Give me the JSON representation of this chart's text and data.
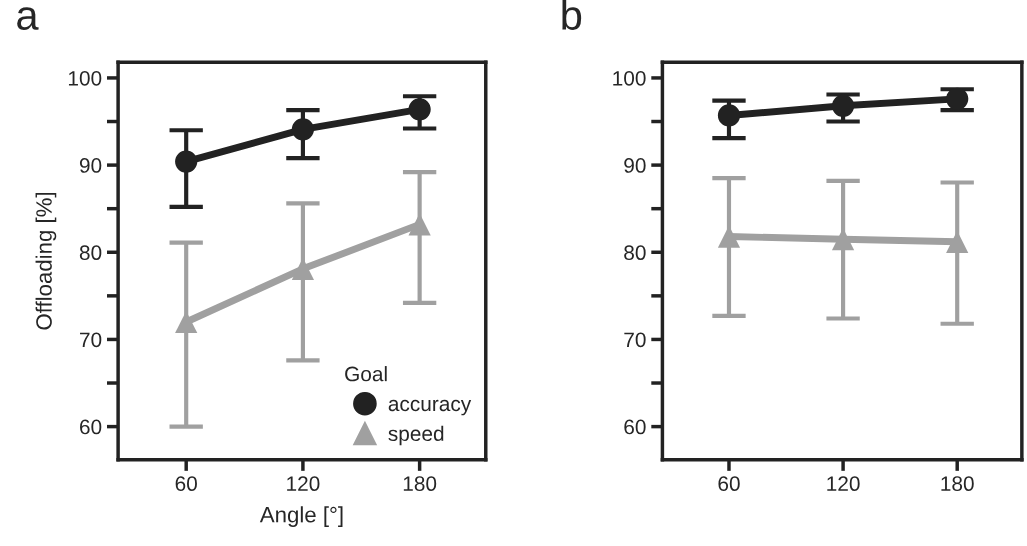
{
  "chart_data": [
    {
      "type": "line",
      "title": "a",
      "xlabel": "Angle [°]",
      "ylabel": "Offloading [%]",
      "legend_title": "Goal",
      "legend": "bottom right",
      "x": [
        60,
        120,
        180
      ],
      "xlim": [
        25,
        214
      ],
      "xticks": [
        60,
        120,
        180
      ],
      "ylim": [
        56.2,
        101.8
      ],
      "yticks": [
        60,
        {
          "value": 65,
          "label": null
        },
        70,
        {
          "value": 75,
          "label": null
        },
        80,
        {
          "value": 85,
          "label": null
        },
        90,
        {
          "value": 95,
          "label": null
        },
        100
      ],
      "series": [
        {
          "name": "accuracy",
          "color": "#222222",
          "marker": "circle",
          "values": [
            90.4,
            94.1,
            96.4
          ],
          "errors": [
            [
              85.2,
              94.0
            ],
            [
              90.8,
              96.3
            ],
            [
              94.2,
              97.9
            ]
          ]
        },
        {
          "name": "speed",
          "color": "#a0a0a0",
          "marker": "triangle",
          "values": [
            72.0,
            78.1,
            83.2
          ],
          "errors": [
            [
              60.0,
              81.1
            ],
            [
              67.6,
              85.6
            ],
            [
              74.2,
              89.2
            ]
          ]
        }
      ]
    },
    {
      "type": "line",
      "title": "b",
      "x": [
        60,
        120,
        180
      ],
      "xlim": [
        25,
        214
      ],
      "xticks": [
        60,
        120,
        180
      ],
      "ylim": [
        56.2,
        101.8
      ],
      "yticks": [
        60,
        {
          "value": 65,
          "label": null
        },
        70,
        {
          "value": 75,
          "label": null
        },
        80,
        {
          "value": 85,
          "label": null
        },
        90,
        {
          "value": 95,
          "label": null
        },
        100
      ],
      "series": [
        {
          "color": "#222222",
          "marker": "circle",
          "values": [
            95.7,
            96.8,
            97.6
          ],
          "errors": [
            [
              93.1,
              97.4
            ],
            [
              95.0,
              98.1
            ],
            [
              96.3,
              98.7
            ]
          ]
        },
        {
          "color": "#a0a0a0",
          "marker": "triangle",
          "values": [
            81.8,
            81.5,
            81.2
          ],
          "errors": [
            [
              72.7,
              88.5
            ],
            [
              72.4,
              88.2
            ],
            [
              71.8,
              88.0
            ]
          ]
        }
      ]
    }
  ]
}
